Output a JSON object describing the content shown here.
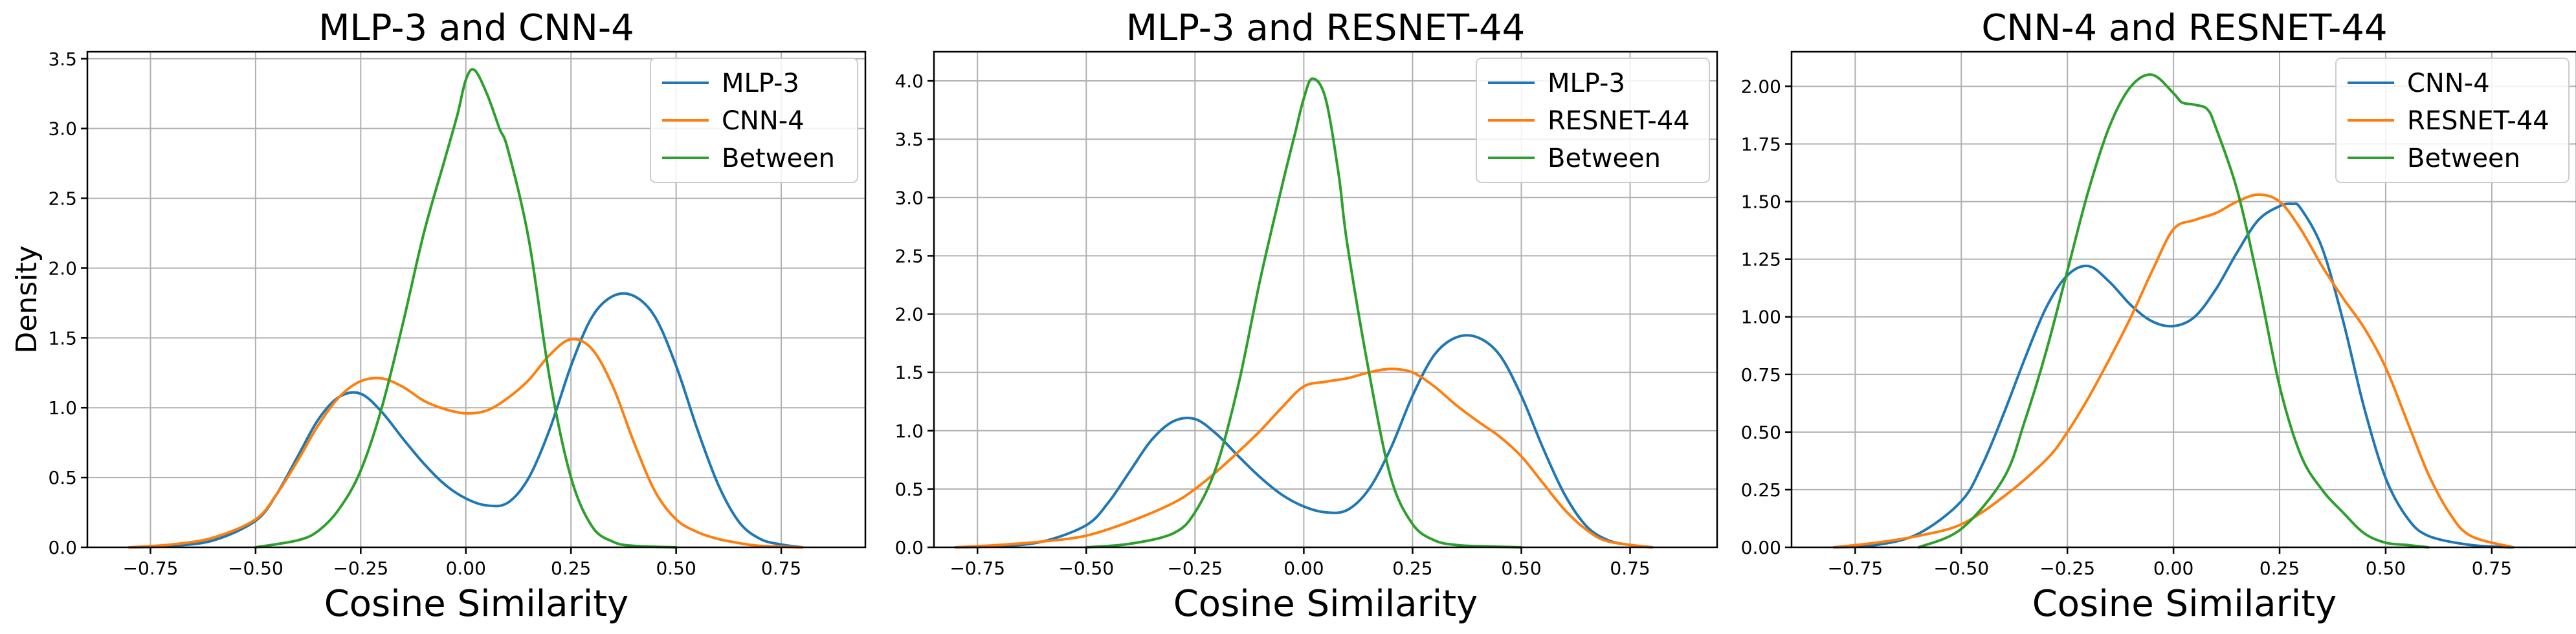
{
  "chart_data": [
    {
      "type": "line",
      "title": "MLP-3 and CNN-4",
      "xlabel": "Cosine Similarity",
      "ylabel": "Density",
      "xlim": [
        -0.9,
        0.95
      ],
      "ylim": [
        0,
        3.55
      ],
      "xticks": [
        -0.75,
        -0.5,
        -0.25,
        0.0,
        0.25,
        0.5,
        0.75
      ],
      "xtick_labels": [
        "−0.75",
        "−0.50",
        "−0.25",
        "0.00",
        "0.25",
        "0.50",
        "0.75"
      ],
      "yticks": [
        0.0,
        0.5,
        1.0,
        1.5,
        2.0,
        2.5,
        3.0,
        3.5
      ],
      "ytick_labels": [
        "0.0",
        "0.5",
        "1.0",
        "1.5",
        "2.0",
        "2.5",
        "3.0",
        "3.5"
      ],
      "grid": true,
      "legend_position": "top-right",
      "series": [
        {
          "name": "MLP-3",
          "color": "#1f77b4",
          "x": [
            -0.8,
            -0.7,
            -0.6,
            -0.5,
            -0.45,
            -0.4,
            -0.35,
            -0.3,
            -0.25,
            -0.2,
            -0.15,
            -0.1,
            -0.05,
            0.0,
            0.05,
            0.1,
            0.15,
            0.2,
            0.25,
            0.3,
            0.35,
            0.4,
            0.45,
            0.5,
            0.55,
            0.6,
            0.65,
            0.7,
            0.75,
            0.8
          ],
          "y": [
            0.0,
            0.01,
            0.05,
            0.19,
            0.38,
            0.65,
            0.92,
            1.08,
            1.1,
            0.97,
            0.78,
            0.6,
            0.45,
            0.35,
            0.3,
            0.32,
            0.5,
            0.85,
            1.3,
            1.65,
            1.8,
            1.8,
            1.65,
            1.3,
            0.85,
            0.45,
            0.18,
            0.06,
            0.02,
            0.0
          ]
        },
        {
          "name": "CNN-4",
          "color": "#ff7f0e",
          "x": [
            -0.8,
            -0.7,
            -0.6,
            -0.5,
            -0.45,
            -0.4,
            -0.35,
            -0.3,
            -0.25,
            -0.2,
            -0.15,
            -0.1,
            -0.05,
            0.0,
            0.05,
            0.1,
            0.15,
            0.2,
            0.25,
            0.3,
            0.35,
            0.4,
            0.45,
            0.5,
            0.55,
            0.6,
            0.65,
            0.7,
            0.8
          ],
          "y": [
            0.0,
            0.02,
            0.07,
            0.2,
            0.38,
            0.62,
            0.88,
            1.08,
            1.19,
            1.21,
            1.15,
            1.05,
            0.99,
            0.96,
            0.98,
            1.07,
            1.2,
            1.38,
            1.49,
            1.42,
            1.15,
            0.75,
            0.4,
            0.2,
            0.11,
            0.06,
            0.03,
            0.01,
            0.0
          ]
        },
        {
          "name": "Between",
          "color": "#2ca02c",
          "x": [
            -0.5,
            -0.4,
            -0.35,
            -0.3,
            -0.25,
            -0.2,
            -0.15,
            -0.1,
            -0.05,
            -0.02,
            0.0,
            0.02,
            0.05,
            0.08,
            0.1,
            0.15,
            0.2,
            0.25,
            0.3,
            0.35,
            0.4,
            0.5
          ],
          "y": [
            0.0,
            0.05,
            0.12,
            0.28,
            0.55,
            1.0,
            1.6,
            2.25,
            2.78,
            3.1,
            3.35,
            3.42,
            3.25,
            3.0,
            2.85,
            2.2,
            1.2,
            0.5,
            0.15,
            0.04,
            0.01,
            0.0
          ]
        }
      ]
    },
    {
      "type": "line",
      "title": "MLP-3 and RESNET-44",
      "xlabel": "Cosine Similarity",
      "ylabel": "",
      "xlim": [
        -0.85,
        0.95
      ],
      "ylim": [
        0,
        4.25
      ],
      "xticks": [
        -0.75,
        -0.5,
        -0.25,
        0.0,
        0.25,
        0.5,
        0.75
      ],
      "xtick_labels": [
        "−0.75",
        "−0.50",
        "−0.25",
        "0.00",
        "0.25",
        "0.50",
        "0.75"
      ],
      "yticks": [
        0.0,
        0.5,
        1.0,
        1.5,
        2.0,
        2.5,
        3.0,
        3.5,
        4.0
      ],
      "ytick_labels": [
        "0.0",
        "0.5",
        "1.0",
        "1.5",
        "2.0",
        "2.5",
        "3.0",
        "3.5",
        "4.0"
      ],
      "grid": true,
      "legend_position": "top-right",
      "series": [
        {
          "name": "MLP-3",
          "color": "#1f77b4",
          "x": [
            -0.8,
            -0.7,
            -0.6,
            -0.5,
            -0.45,
            -0.4,
            -0.35,
            -0.3,
            -0.25,
            -0.2,
            -0.15,
            -0.1,
            -0.05,
            0.0,
            0.05,
            0.1,
            0.15,
            0.2,
            0.25,
            0.3,
            0.35,
            0.4,
            0.45,
            0.5,
            0.55,
            0.6,
            0.65,
            0.7,
            0.75,
            0.8
          ],
          "y": [
            0.0,
            0.01,
            0.05,
            0.19,
            0.38,
            0.65,
            0.92,
            1.08,
            1.1,
            0.97,
            0.78,
            0.6,
            0.45,
            0.35,
            0.3,
            0.32,
            0.5,
            0.85,
            1.3,
            1.65,
            1.8,
            1.8,
            1.65,
            1.3,
            0.85,
            0.45,
            0.18,
            0.06,
            0.02,
            0.0
          ]
        },
        {
          "name": "RESNET-44",
          "color": "#ff7f0e",
          "x": [
            -0.8,
            -0.7,
            -0.6,
            -0.5,
            -0.4,
            -0.3,
            -0.25,
            -0.2,
            -0.15,
            -0.1,
            -0.05,
            0.0,
            0.05,
            0.1,
            0.15,
            0.2,
            0.25,
            0.3,
            0.35,
            0.4,
            0.45,
            0.5,
            0.55,
            0.6,
            0.65,
            0.7,
            0.8
          ],
          "y": [
            0.0,
            0.02,
            0.05,
            0.1,
            0.22,
            0.38,
            0.5,
            0.65,
            0.82,
            1.0,
            1.2,
            1.38,
            1.42,
            1.45,
            1.5,
            1.53,
            1.5,
            1.38,
            1.22,
            1.08,
            0.95,
            0.78,
            0.55,
            0.32,
            0.15,
            0.05,
            0.0
          ]
        },
        {
          "name": "Between",
          "color": "#2ca02c",
          "x": [
            -0.5,
            -0.4,
            -0.3,
            -0.25,
            -0.2,
            -0.15,
            -0.1,
            -0.05,
            -0.02,
            0.0,
            0.02,
            0.05,
            0.08,
            0.1,
            0.15,
            0.2,
            0.25,
            0.3,
            0.35,
            0.4,
            0.5
          ],
          "y": [
            0.0,
            0.03,
            0.12,
            0.3,
            0.7,
            1.4,
            2.3,
            3.1,
            3.55,
            3.85,
            4.02,
            3.85,
            3.2,
            2.6,
            1.5,
            0.6,
            0.2,
            0.06,
            0.02,
            0.01,
            0.0
          ]
        }
      ]
    },
    {
      "type": "line",
      "title": "CNN-4 and RESNET-44",
      "xlabel": "Cosine Similarity",
      "ylabel": "",
      "xlim": [
        -0.9,
        0.95
      ],
      "ylim": [
        0,
        2.15
      ],
      "xticks": [
        -0.75,
        -0.5,
        -0.25,
        0.0,
        0.25,
        0.5,
        0.75
      ],
      "xtick_labels": [
        "−0.75",
        "−0.50",
        "−0.25",
        "0.00",
        "0.25",
        "0.50",
        "0.75"
      ],
      "yticks": [
        0.0,
        0.25,
        0.5,
        0.75,
        1.0,
        1.25,
        1.5,
        1.75,
        2.0
      ],
      "ytick_labels": [
        "0.00",
        "0.25",
        "0.50",
        "0.75",
        "1.00",
        "1.25",
        "1.50",
        "1.75",
        "2.00"
      ],
      "grid": true,
      "legend_position": "top-right",
      "series": [
        {
          "name": "CNN-4",
          "color": "#1f77b4",
          "x": [
            -0.8,
            -0.7,
            -0.6,
            -0.5,
            -0.45,
            -0.4,
            -0.35,
            -0.3,
            -0.25,
            -0.2,
            -0.15,
            -0.1,
            -0.05,
            0.0,
            0.05,
            0.1,
            0.15,
            0.2,
            0.25,
            0.28,
            0.3,
            0.35,
            0.4,
            0.45,
            0.5,
            0.55,
            0.6,
            0.7,
            0.8
          ],
          "y": [
            0.0,
            0.01,
            0.06,
            0.2,
            0.36,
            0.58,
            0.82,
            1.04,
            1.18,
            1.22,
            1.15,
            1.05,
            0.98,
            0.96,
            1.0,
            1.12,
            1.28,
            1.42,
            1.48,
            1.49,
            1.47,
            1.3,
            0.98,
            0.6,
            0.3,
            0.13,
            0.05,
            0.01,
            0.0
          ]
        },
        {
          "name": "RESNET-44",
          "color": "#ff7f0e",
          "x": [
            -0.8,
            -0.7,
            -0.6,
            -0.5,
            -0.4,
            -0.3,
            -0.25,
            -0.2,
            -0.15,
            -0.1,
            -0.05,
            0.0,
            0.05,
            0.1,
            0.15,
            0.2,
            0.25,
            0.3,
            0.35,
            0.4,
            0.45,
            0.5,
            0.55,
            0.6,
            0.65,
            0.7,
            0.8
          ],
          "y": [
            0.0,
            0.02,
            0.05,
            0.1,
            0.22,
            0.38,
            0.5,
            0.65,
            0.82,
            1.0,
            1.2,
            1.38,
            1.42,
            1.45,
            1.5,
            1.53,
            1.5,
            1.38,
            1.22,
            1.08,
            0.95,
            0.78,
            0.55,
            0.32,
            0.15,
            0.05,
            0.0
          ]
        },
        {
          "name": "Between",
          "color": "#2ca02c",
          "x": [
            -0.6,
            -0.5,
            -0.4,
            -0.35,
            -0.3,
            -0.25,
            -0.2,
            -0.15,
            -0.1,
            -0.05,
            0.0,
            0.02,
            0.05,
            0.08,
            0.1,
            0.15,
            0.2,
            0.25,
            0.3,
            0.35,
            0.4,
            0.45,
            0.5,
            0.55,
            0.6
          ],
          "y": [
            0.0,
            0.08,
            0.3,
            0.55,
            0.85,
            1.2,
            1.55,
            1.83,
            2.0,
            2.05,
            1.97,
            1.93,
            1.92,
            1.9,
            1.82,
            1.55,
            1.15,
            0.7,
            0.4,
            0.25,
            0.15,
            0.06,
            0.02,
            0.01,
            0.0
          ]
        }
      ]
    }
  ]
}
